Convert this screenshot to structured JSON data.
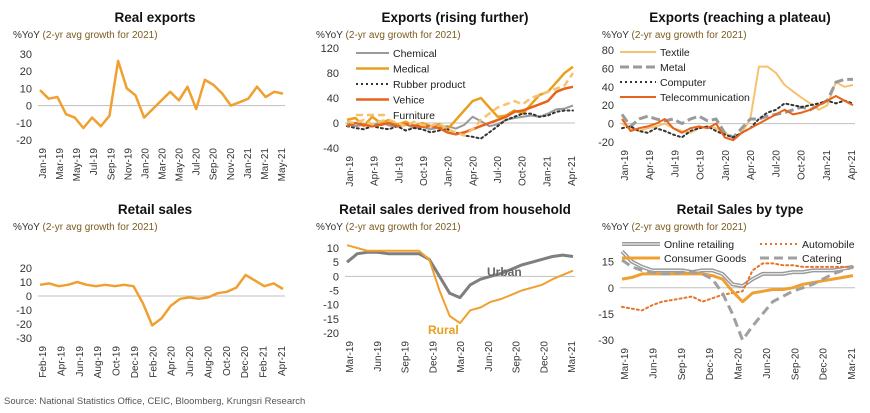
{
  "source": "Source: National Statistics Office, CEIC, Bloomberg, Krungsri Research",
  "chart_data": [
    {
      "type": "line",
      "title": "Real exports",
      "unit_label": "%YoY",
      "note": "(2-yr avg growth for 2021)",
      "ylim": [
        -20,
        30
      ],
      "yticks": [
        -20,
        -10,
        0,
        10,
        20,
        30
      ],
      "xticklabels": [
        "Jan-19",
        "Mar-19",
        "May-19",
        "Jul-19",
        "Sep-19",
        "Nov-19",
        "Jan-20",
        "Mar-20",
        "May-20",
        "Jul-20",
        "Sep-20",
        "Nov-20",
        "Jan-21",
        "Mar-21",
        "May-21"
      ],
      "series": [
        {
          "color": "#f0a030",
          "width": 2.5,
          "dash": "",
          "values": [
            9,
            4,
            5,
            -5,
            -7,
            -13,
            -7,
            -12,
            -6,
            26,
            10,
            6,
            -7,
            -2,
            3,
            8,
            3,
            11,
            -2,
            15,
            12,
            7,
            0,
            2,
            4,
            11,
            5,
            8,
            7
          ]
        }
      ]
    },
    {
      "type": "line",
      "title": "Exports (rising further)",
      "unit_label": "%YoY",
      "note": "(2-yr avg growth for 2021)",
      "ylim": [
        -40,
        120
      ],
      "yticks": [
        -40,
        0,
        40,
        80,
        120
      ],
      "xticklabels": [
        "Jan-19",
        "Apr-19",
        "Jul-19",
        "Oct-19",
        "Jan-20",
        "Apr-20",
        "Jul-20",
        "Oct-20",
        "Jan-21",
        "Apr-21"
      ],
      "legend": [
        "Chemical",
        "Medical",
        "Rubber product",
        "Vehice",
        "Furniture"
      ],
      "series": [
        {
          "name": "Chemical",
          "color": "#9a9a9a",
          "width": 2,
          "dash": "",
          "values": [
            0,
            -5,
            -3,
            -5,
            2,
            -4,
            -6,
            -2,
            -8,
            -6,
            -10,
            -7,
            -5,
            -9,
            -3,
            10,
            3,
            -5,
            -2,
            5,
            8,
            10,
            12,
            10,
            15,
            22,
            23,
            28
          ]
        },
        {
          "name": "Medical",
          "color": "#e8a020",
          "width": 2.5,
          "dash": "",
          "values": [
            5,
            8,
            -5,
            10,
            0,
            5,
            -3,
            2,
            -5,
            0,
            -5,
            -2,
            -10,
            5,
            20,
            35,
            40,
            25,
            10,
            12,
            20,
            15,
            30,
            45,
            50,
            65,
            80,
            90
          ]
        },
        {
          "name": "Rubber product",
          "color": "#333333",
          "width": 2,
          "dash": "2,3",
          "values": [
            -5,
            -8,
            -10,
            -5,
            -8,
            -10,
            -5,
            -12,
            -8,
            -10,
            -15,
            -12,
            -10,
            -15,
            -20,
            -22,
            -25,
            -15,
            -5,
            5,
            10,
            15,
            15,
            10,
            12,
            18,
            20,
            20
          ]
        },
        {
          "name": "Vehice",
          "color": "#e8631a",
          "width": 2.5,
          "dash": "",
          "values": [
            -5,
            0,
            -3,
            -5,
            -3,
            0,
            -5,
            -2,
            -4,
            -6,
            -5,
            -8,
            -15,
            -18,
            -15,
            -10,
            -5,
            0,
            5,
            10,
            18,
            20,
            25,
            30,
            35,
            50,
            55,
            58
          ]
        },
        {
          "name": "Furniture",
          "color": "#f5c270",
          "width": 2.5,
          "dash": "7,4",
          "values": [
            2,
            0,
            5,
            -2,
            3,
            5,
            0,
            -5,
            2,
            -3,
            -5,
            0,
            -10,
            -15,
            -20,
            -10,
            5,
            15,
            25,
            30,
            35,
            30,
            40,
            45,
            50,
            55,
            60,
            80
          ]
        }
      ]
    },
    {
      "type": "line",
      "title": "Exports (reaching a plateau)",
      "unit_label": "%YoY",
      "note": "(2-yr avg growth for 2021)",
      "ylim": [
        -20,
        80
      ],
      "yticks": [
        -20,
        0,
        20,
        40,
        60,
        80
      ],
      "xticklabels": [
        "Jan-19",
        "Apr-19",
        "Jul-19",
        "Oct-19",
        "Jan-20",
        "Apr-20",
        "Jul-20",
        "Oct-20",
        "Jan-21",
        "Apr-21"
      ],
      "legend": [
        "Textile",
        "Metal",
        "Computer",
        "Telecommunication"
      ],
      "series": [
        {
          "name": "Textile",
          "color": "#f5c270",
          "width": 2,
          "dash": "",
          "values": [
            0,
            -5,
            -8,
            -5,
            -3,
            0,
            -5,
            -8,
            -10,
            -5,
            -3,
            -5,
            -10,
            -15,
            -10,
            5,
            62,
            62,
            55,
            42,
            35,
            28,
            22,
            15,
            20,
            45,
            40,
            42
          ]
        },
        {
          "name": "Metal",
          "color": "#9a9a9a",
          "width": 3,
          "dash": "9,4",
          "values": [
            10,
            -3,
            5,
            8,
            5,
            3,
            5,
            0,
            5,
            8,
            3,
            5,
            -10,
            -15,
            -5,
            5,
            5,
            8,
            10,
            12,
            15,
            18,
            15,
            20,
            25,
            45,
            48,
            48
          ]
        },
        {
          "name": "Computer",
          "color": "#333333",
          "width": 2,
          "dash": "2,3",
          "values": [
            -5,
            -3,
            -8,
            -10,
            -5,
            -8,
            -12,
            -15,
            -8,
            -5,
            -3,
            -8,
            -12,
            -15,
            -10,
            -5,
            5,
            12,
            15,
            22,
            20,
            18,
            20,
            22,
            25,
            22,
            25,
            22
          ]
        },
        {
          "name": "Telecommunication",
          "color": "#e8631a",
          "width": 2,
          "dash": "",
          "values": [
            5,
            -8,
            -5,
            -3,
            0,
            5,
            -5,
            -10,
            -5,
            -3,
            -5,
            0,
            -15,
            -18,
            -10,
            -5,
            0,
            5,
            10,
            15,
            10,
            12,
            15,
            20,
            25,
            30,
            25,
            20
          ]
        }
      ]
    },
    {
      "type": "line",
      "title": "Retail sales",
      "unit_label": "%YoY",
      "note": "(2-yr avg growth for 2021)",
      "ylim": [
        -30,
        20
      ],
      "yticks": [
        -30,
        -20,
        -10,
        0,
        10,
        20
      ],
      "xticklabels": [
        "Feb-19",
        "Apr-19",
        "Jun-19",
        "Aug-19",
        "Oct-19",
        "Dec-19",
        "Feb-20",
        "Apr-20",
        "Jun-20",
        "Aug-20",
        "Oct-20",
        "Dec-20",
        "Feb-21",
        "Apr-21"
      ],
      "series": [
        {
          "color": "#f0a030",
          "width": 2.5,
          "dash": "",
          "values": [
            8,
            9,
            7,
            8,
            10,
            8,
            7,
            8,
            7,
            8,
            7,
            -5,
            -21,
            -16,
            -7,
            -2,
            -1,
            -2,
            -1,
            2,
            3,
            6,
            15,
            11,
            7,
            9,
            5
          ]
        }
      ]
    },
    {
      "type": "line",
      "title": "Retail sales derived from household",
      "unit_label": "%YoY",
      "note": "(2-yr avg growth for 2021)",
      "ylim": [
        -20,
        10
      ],
      "yticks": [
        -20,
        -15,
        -10,
        -5,
        0,
        5,
        10
      ],
      "xticklabels": [
        "Mar-19",
        "Jun-19",
        "Sep-19",
        "Dec-19",
        "Mar-20",
        "Jun-20",
        "Sep-20",
        "Dec-20",
        "Mar-21"
      ],
      "annotations": [
        "Urban",
        "Rural"
      ],
      "series": [
        {
          "name": "Urban",
          "color": "#7f7f7f",
          "width": 3,
          "dash": "",
          "values": [
            5,
            8,
            8.5,
            8.5,
            8,
            8,
            8,
            8,
            6,
            0,
            -6,
            -7.5,
            -3,
            -1,
            0,
            1,
            2.5,
            4,
            5,
            6,
            7,
            7.5,
            7
          ]
        },
        {
          "name": "Rural",
          "color": "#f0a030",
          "width": 2,
          "dash": "",
          "values": [
            11,
            10,
            9,
            9,
            9,
            9,
            9,
            9,
            6,
            -5,
            -14,
            -16.5,
            -12,
            -11,
            -9,
            -8,
            -6.5,
            -5,
            -4,
            -3,
            -1,
            0.5,
            2
          ]
        }
      ]
    },
    {
      "type": "line",
      "title": "Retail Sales by type",
      "unit_label": "%YoY",
      "note": "(2-yr avg growth for 2021)",
      "ylim": [
        -30,
        20
      ],
      "yticks": [
        -30,
        -15,
        0,
        15
      ],
      "xticklabels": [
        "Mar-19",
        "Jun-19",
        "Sep-19",
        "Dec-19",
        "Mar-20",
        "Jun-20",
        "Sep-20",
        "Dec-20",
        "Mar-21"
      ],
      "legend": [
        "Online retailing",
        "Automobile",
        "Consumer Goods",
        "Catering"
      ],
      "series": [
        {
          "name": "Online retailing",
          "color": "#9a9a9a",
          "width": 2.5,
          "dash": "",
          "double": true,
          "values": [
            21,
            15,
            12,
            10,
            10,
            10,
            10,
            9,
            10,
            10,
            8,
            2,
            1,
            5,
            8,
            8,
            8,
            9,
            9,
            10,
            10,
            10,
            11,
            12
          ]
        },
        {
          "name": "Automobile",
          "color": "#e8742a",
          "width": 2,
          "dash": "2,3",
          "values": [
            -11,
            -12,
            -13,
            -10,
            -8,
            -7,
            -6,
            -5,
            -8,
            -6,
            -4,
            -3,
            -2,
            10,
            14,
            14,
            13,
            13,
            12,
            12,
            12,
            12,
            12,
            12
          ]
        },
        {
          "name": "Consumer Goods",
          "color": "#f0a030",
          "width": 3,
          "dash": "",
          "values": [
            5,
            6,
            8,
            8,
            8,
            8,
            8,
            8,
            8,
            7,
            5,
            -2,
            -8,
            -3,
            -2,
            -1,
            -1,
            0,
            2,
            3,
            4,
            5,
            6,
            7
          ]
        },
        {
          "name": "Catering",
          "color": "#a0a0a0",
          "width": 3,
          "dash": "9,5",
          "values": [
            16,
            12,
            10,
            9,
            8,
            8,
            9,
            9,
            8,
            5,
            -3,
            -15,
            -30,
            -22,
            -15,
            -8,
            -5,
            -2,
            0,
            2,
            5,
            8,
            10,
            12
          ]
        }
      ]
    }
  ]
}
